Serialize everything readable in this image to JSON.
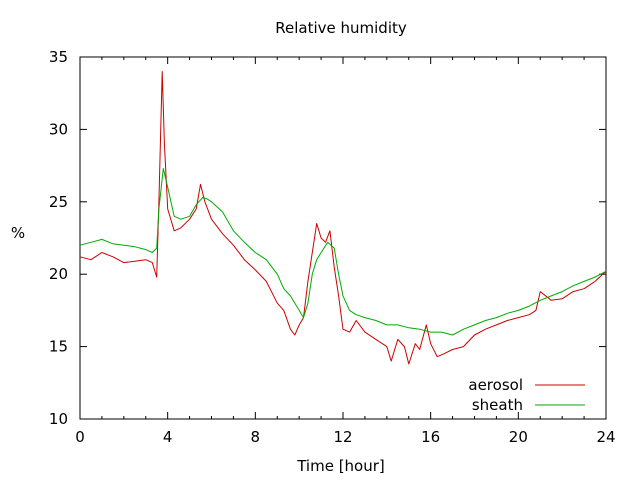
{
  "chart_data": {
    "type": "line",
    "title": "Relative humidity",
    "xlabel": "Time [hour]",
    "ylabel": "%",
    "xlim": [
      0,
      24
    ],
    "ylim": [
      10,
      35
    ],
    "x_ticks": [
      "0",
      "4",
      "8",
      "12",
      "16",
      "20",
      "24"
    ],
    "y_ticks": [
      "10",
      "15",
      "20",
      "25",
      "30",
      "35"
    ],
    "grid": false,
    "legend_position": "bottom-right",
    "series": [
      {
        "name": "aerosol",
        "color": "#cc0000",
        "x": [
          0,
          0.5,
          1,
          1.5,
          2,
          2.5,
          3,
          3.3,
          3.5,
          3.6,
          3.75,
          3.85,
          4,
          4.3,
          4.6,
          5,
          5.3,
          5.5,
          5.7,
          6,
          6.5,
          7,
          7.5,
          8,
          8.5,
          9,
          9.3,
          9.6,
          9.8,
          10,
          10.2,
          10.4,
          10.6,
          10.8,
          11,
          11.2,
          11.4,
          11.6,
          11.8,
          12,
          12.3,
          12.6,
          13,
          13.5,
          14,
          14.2,
          14.5,
          14.8,
          15,
          15.3,
          15.5,
          15.8,
          16,
          16.3,
          16.6,
          17,
          17.5,
          18,
          18.5,
          19,
          19.5,
          20,
          20.5,
          20.8,
          21,
          21.5,
          22,
          22.5,
          23,
          23.5,
          24
        ],
        "y": [
          21.2,
          21.0,
          21.5,
          21.2,
          20.8,
          20.9,
          21.0,
          20.8,
          19.8,
          25.0,
          34.0,
          29.0,
          24.5,
          23.0,
          23.2,
          23.8,
          24.5,
          26.2,
          25.0,
          23.8,
          22.8,
          22.0,
          21.0,
          20.3,
          19.5,
          18.0,
          17.5,
          16.2,
          15.8,
          16.5,
          17.0,
          19.5,
          21.5,
          23.5,
          22.5,
          22.2,
          23.0,
          20.5,
          18.5,
          16.2,
          16.0,
          16.8,
          16.0,
          15.5,
          15.0,
          14.0,
          15.5,
          15.0,
          13.8,
          15.2,
          14.8,
          16.5,
          15.2,
          14.3,
          14.5,
          14.8,
          15.0,
          15.8,
          16.2,
          16.5,
          16.8,
          17.0,
          17.2,
          17.5,
          18.8,
          18.2,
          18.3,
          18.8,
          19.0,
          19.5,
          20.2
        ]
      },
      {
        "name": "sheath",
        "color": "#00aa00",
        "x": [
          0,
          0.5,
          1,
          1.5,
          2,
          2.5,
          3,
          3.3,
          3.5,
          3.6,
          3.8,
          4,
          4.3,
          4.6,
          5,
          5.3,
          5.6,
          5.8,
          6,
          6.5,
          7,
          7.5,
          8,
          8.5,
          9,
          9.3,
          9.6,
          10,
          10.2,
          10.4,
          10.6,
          10.8,
          11,
          11.3,
          11.6,
          11.8,
          12,
          12.3,
          12.6,
          13,
          13.5,
          14,
          14.5,
          15,
          15.5,
          16,
          16.5,
          17,
          17.5,
          18,
          18.5,
          19,
          19.5,
          20,
          20.5,
          21,
          21.5,
          22,
          22.5,
          23,
          23.5,
          24
        ],
        "y": [
          22.0,
          22.2,
          22.4,
          22.1,
          22.0,
          21.9,
          21.7,
          21.5,
          21.8,
          24.5,
          27.3,
          26.0,
          24.0,
          23.8,
          24.0,
          24.8,
          25.3,
          25.2,
          25.0,
          24.3,
          23.0,
          22.2,
          21.5,
          21.0,
          20.0,
          19.0,
          18.5,
          17.5,
          17.0,
          18.0,
          20.0,
          21.0,
          21.5,
          22.2,
          21.8,
          20.0,
          18.5,
          17.5,
          17.2,
          17.0,
          16.8,
          16.5,
          16.5,
          16.3,
          16.2,
          16.0,
          16.0,
          15.8,
          16.2,
          16.5,
          16.8,
          17.0,
          17.3,
          17.5,
          17.8,
          18.2,
          18.5,
          18.8,
          19.2,
          19.5,
          19.8,
          20.2
        ]
      }
    ]
  }
}
